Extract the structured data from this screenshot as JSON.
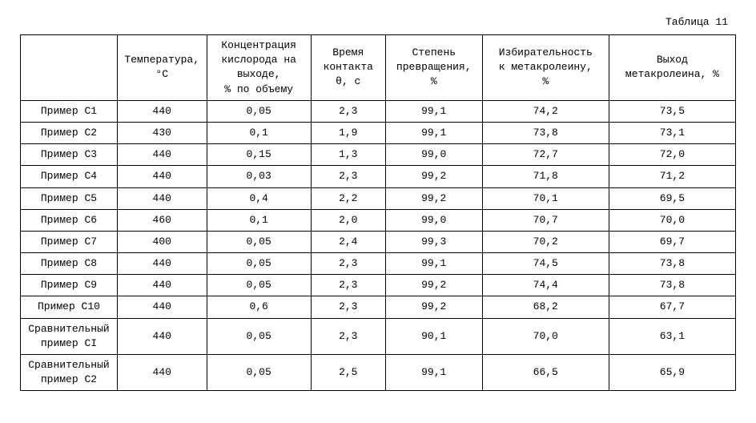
{
  "caption": "Таблица 11",
  "columns": [
    "",
    "Температура,\n°C",
    "Концентрация\nкислорода на\nвыходе,\n% по объему",
    "Время\nконтакта\nθ, с",
    "Степень\nпревращения,\n%",
    "Избирательность\nк метакролеину,\n%",
    "Выход\nметакролеина, %"
  ],
  "rows": [
    {
      "tall": false,
      "cells": [
        "Пример C1",
        "440",
        "0,05",
        "2,3",
        "99,1",
        "74,2",
        "73,5"
      ]
    },
    {
      "tall": false,
      "cells": [
        "Пример C2",
        "430",
        "0,1",
        "1,9",
        "99,1",
        "73,8",
        "73,1"
      ]
    },
    {
      "tall": false,
      "cells": [
        "Пример C3",
        "440",
        "0,15",
        "1,3",
        "99,0",
        "72,7",
        "72,0"
      ]
    },
    {
      "tall": false,
      "cells": [
        "Пример C4",
        "440",
        "0,03",
        "2,3",
        "99,2",
        "71,8",
        "71,2"
      ]
    },
    {
      "tall": false,
      "cells": [
        "Пример C5",
        "440",
        "0,4",
        "2,2",
        "99,2",
        "70,1",
        "69,5"
      ]
    },
    {
      "tall": false,
      "cells": [
        "Пример C6",
        "460",
        "0,1",
        "2,0",
        "99,0",
        "70,7",
        "70,0"
      ]
    },
    {
      "tall": false,
      "cells": [
        "Пример C7",
        "400",
        "0,05",
        "2,4",
        "99,3",
        "70,2",
        "69,7"
      ]
    },
    {
      "tall": false,
      "cells": [
        "Пример C8",
        "440",
        "0,05",
        "2,3",
        "99,1",
        "74,5",
        "73,8"
      ]
    },
    {
      "tall": false,
      "cells": [
        "Пример C9",
        "440",
        "0,05",
        "2,3",
        "99,2",
        "74,4",
        "73,8"
      ]
    },
    {
      "tall": false,
      "cells": [
        "Пример C10",
        "440",
        "0,6",
        "2,3",
        "99,2",
        "68,2",
        "67,7"
      ]
    },
    {
      "tall": true,
      "cells": [
        "Сравнительный\nпример CI",
        "440",
        "0,05",
        "2,3",
        "90,1",
        "70,0",
        "63,1"
      ]
    },
    {
      "tall": true,
      "cells": [
        "Сравнительный\nпример C2",
        "440",
        "0,05",
        "2,5",
        "99,1",
        "66,5",
        "65,9"
      ]
    }
  ],
  "colors": {
    "background": "#ffffff",
    "border": "#000000",
    "text": "#000000"
  },
  "font": {
    "family": "Courier New",
    "size_body": 13,
    "size_caption": 13
  }
}
